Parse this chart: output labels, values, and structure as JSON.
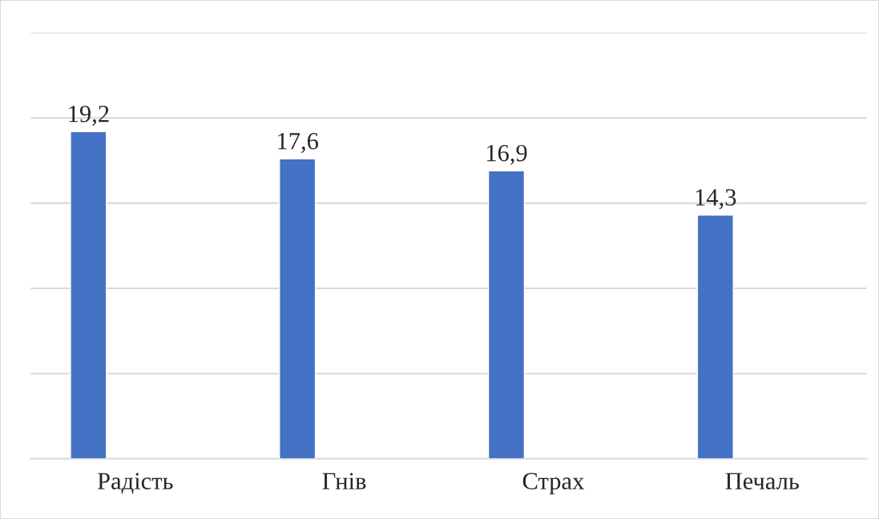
{
  "chart_data": {
    "type": "bar",
    "categories": [
      "Радість",
      "Гнів",
      "Страх",
      "Печаль"
    ],
    "values": [
      19.2,
      17.6,
      16.9,
      14.3
    ],
    "value_labels": [
      "19,2",
      "17,6",
      "16,9",
      "14,3"
    ],
    "color": "#4472c4",
    "ylim": [
      0,
      25
    ],
    "yticks": [
      {
        "value": 0,
        "label": null
      },
      {
        "value": 5,
        "label": null
      },
      {
        "value": 10,
        "label": null
      },
      {
        "value": 15,
        "label": null
      },
      {
        "value": 20,
        "label": null
      },
      {
        "value": 25,
        "label": null
      }
    ],
    "tick_labels": "x",
    "grid": "y",
    "legend": false
  }
}
